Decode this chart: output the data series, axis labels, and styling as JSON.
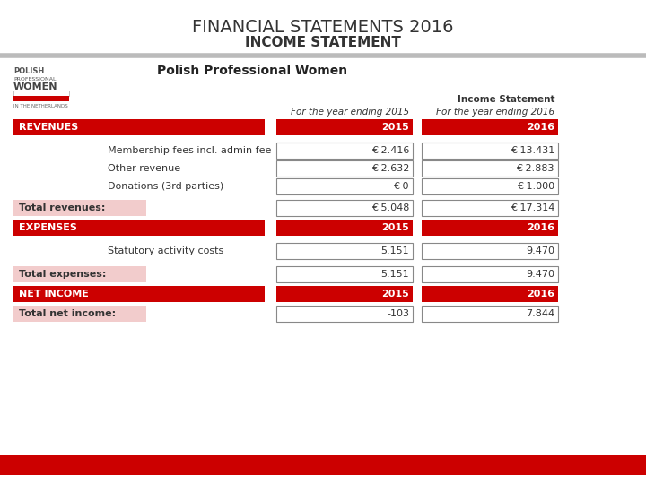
{
  "title_line1": "FINANCIAL STATEMENTS 2016",
  "title_line2": "INCOME STATEMENT",
  "org_name": "Polish Professional Women",
  "col_header_left": "For the year ending 2015",
  "col_header_right_top": "Income Statement",
  "col_header_right": "For the year ending 2016",
  "red_color": "#CC0000",
  "light_red_bg": "#F2CCCC",
  "separator_color": "#BBBBBB",
  "sections": [
    {
      "type": "header_row",
      "label": "REVENUES",
      "val2015": "2015",
      "val2016": "2016"
    },
    {
      "type": "data_row",
      "label": "Membership fees incl. admin fee",
      "val2015": "€ 2.416",
      "val2016": "€ 13.431"
    },
    {
      "type": "data_row",
      "label": "Other revenue",
      "val2015": "€ 2.632",
      "val2016": "€ 2.883"
    },
    {
      "type": "data_row",
      "label": "Donations (3rd parties)",
      "val2015": "€ 0",
      "val2016": "€ 1.000"
    },
    {
      "type": "total_row",
      "label": "Total revenues:",
      "val2015": "€ 5.048",
      "val2016": "€ 17.314"
    },
    {
      "type": "header_row",
      "label": "EXPENSES",
      "val2015": "2015",
      "val2016": "2016"
    },
    {
      "type": "data_row",
      "label": "Statutory activity costs",
      "val2015": "5.151",
      "val2016": "9.470"
    },
    {
      "type": "total_row",
      "label": "Total expenses:",
      "val2015": "5.151",
      "val2016": "9.470"
    },
    {
      "type": "header_row",
      "label": "NET INCOME",
      "val2015": "2015",
      "val2016": "2016"
    },
    {
      "type": "total_row",
      "label": "Total net income:",
      "val2015": "-103",
      "val2016": "7.844"
    }
  ]
}
